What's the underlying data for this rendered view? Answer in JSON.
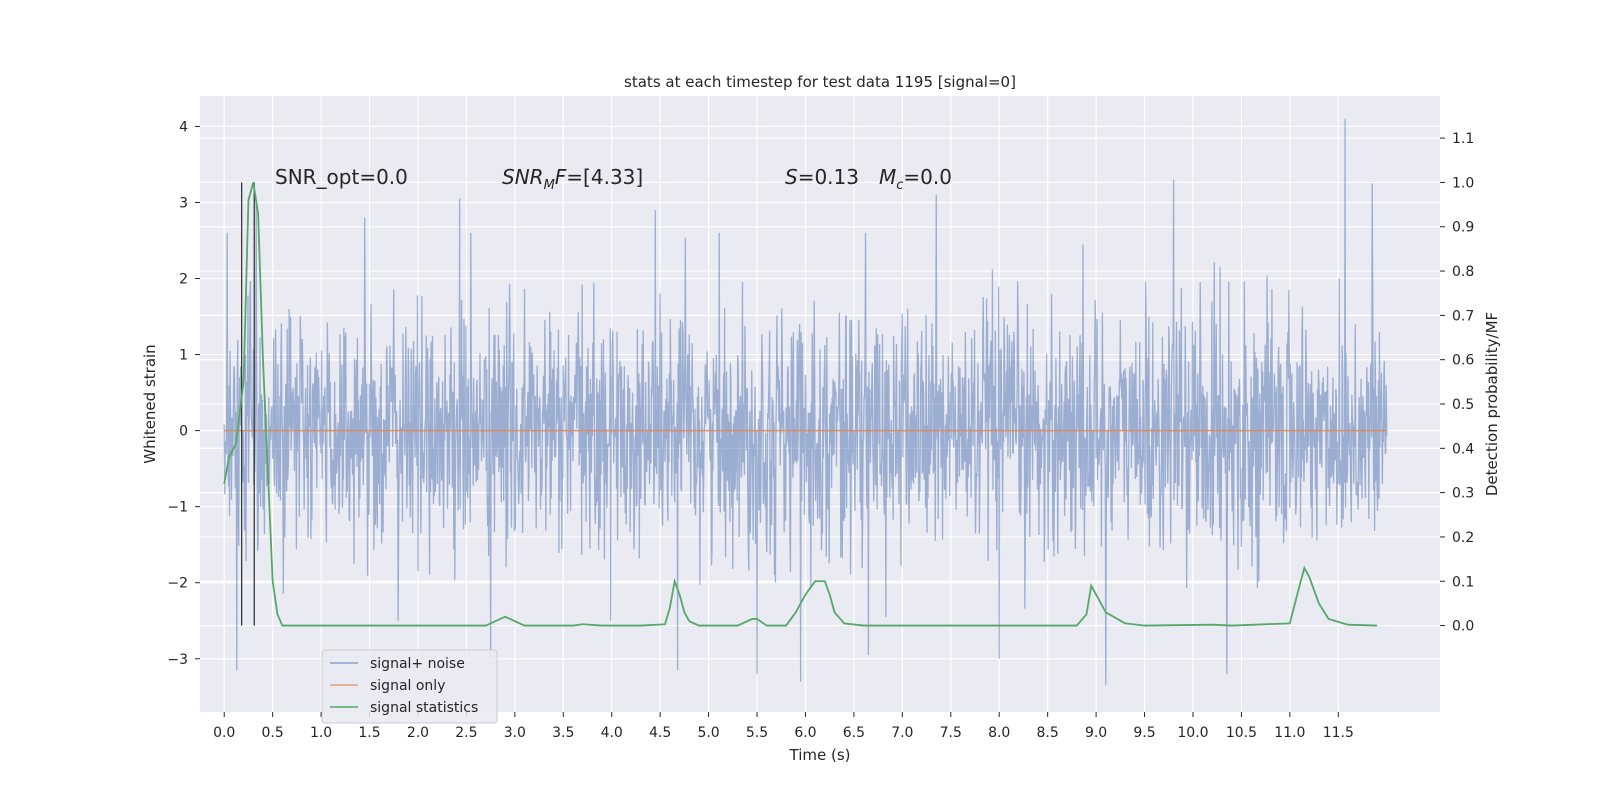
{
  "chart_data": {
    "type": "line",
    "title": "stats at each timestep for test data 1195 [signal=0]",
    "xlabel": "Time (s)",
    "ylabel": "Whitened strain",
    "y2label": "Detection probability/MF",
    "xlim": [
      -0.25,
      12.55
    ],
    "ylim": [
      -3.7,
      4.4
    ],
    "y2lim": [
      -0.195,
      1.195
    ],
    "x_ticks": [
      0.0,
      0.5,
      1.0,
      1.5,
      2.0,
      2.5,
      3.0,
      3.5,
      4.0,
      4.5,
      5.0,
      5.5,
      6.0,
      6.5,
      7.0,
      7.5,
      8.0,
      8.5,
      9.0,
      9.5,
      10.0,
      10.5,
      11.0,
      11.5
    ],
    "x_tick_labels": [
      "0.0",
      "0.5",
      "1.0",
      "1.5",
      "2.0",
      "2.5",
      "3.0",
      "3.5",
      "4.0",
      "4.5",
      "5.0",
      "5.5",
      "6.0",
      "6.5",
      "7.0",
      "7.5",
      "8.0",
      "8.5",
      "9.0",
      "9.5",
      "10.0",
      "10.5",
      "11.0",
      "11.5"
    ],
    "y_ticks": [
      -3,
      -2,
      -1,
      0,
      1,
      2,
      3,
      4
    ],
    "y_tick_labels": [
      "−3",
      "−2",
      "−1",
      "0",
      "1",
      "2",
      "3",
      "4"
    ],
    "y2_ticks": [
      0.0,
      0.1,
      0.2,
      0.3,
      0.4,
      0.5,
      0.6,
      0.7,
      0.8,
      0.9,
      1.0,
      1.1
    ],
    "y2_tick_labels": [
      "0.0",
      "0.1",
      "0.2",
      "0.3",
      "0.4",
      "0.5",
      "0.6",
      "0.7",
      "0.8",
      "0.9",
      "1.0",
      "1.1"
    ],
    "grid": true,
    "legend_position": "lower-left",
    "annotations": {
      "snr_opt": "SNR_opt=0.0",
      "snr_mf_main": "SNR",
      "snr_mf_sub": "M",
      "snr_mf_rest": "F",
      "snr_mf_value": "=[4.33]",
      "s_symbol": "S",
      "s_value": "=0.13",
      "mc_symbol": "M",
      "mc_sub": "c",
      "mc_value": "=0.0"
    },
    "vertical_markers": [
      0.18,
      0.31
    ],
    "series": [
      {
        "name": "signal+ noise",
        "color": "#4c72b0",
        "opacity": 0.5,
        "x_range": [
          0.0,
          12.0
        ],
        "style": "dense noise around 0 with peaks up to about 4.1 and down to about -3.4",
        "peaks": [
          {
            "x": 0.03,
            "y": 2.6
          },
          {
            "x": 0.13,
            "y": -3.15
          },
          {
            "x": 0.33,
            "y": 3.0
          },
          {
            "x": 1.45,
            "y": 2.8
          },
          {
            "x": 2.43,
            "y": 3.05
          },
          {
            "x": 2.75,
            "y": -3.0
          },
          {
            "x": 4.45,
            "y": 2.9
          },
          {
            "x": 4.68,
            "y": -3.15
          },
          {
            "x": 5.5,
            "y": -3.2
          },
          {
            "x": 5.95,
            "y": -3.3
          },
          {
            "x": 6.65,
            "y": -2.95
          },
          {
            "x": 7.35,
            "y": 3.1
          },
          {
            "x": 8.0,
            "y": -3.0
          },
          {
            "x": 9.1,
            "y": -3.35
          },
          {
            "x": 9.8,
            "y": 3.3
          },
          {
            "x": 10.35,
            "y": -3.2
          },
          {
            "x": 11.57,
            "y": 4.1
          },
          {
            "x": 11.85,
            "y": 3.25
          }
        ]
      },
      {
        "name": "signal only",
        "color": "#dd8452",
        "x": [
          0.0,
          12.0
        ],
        "y": [
          0.0,
          0.0
        ]
      },
      {
        "name": "signal statistics",
        "color": "#55a868",
        "axis": "right",
        "x": [
          0.0,
          0.05,
          0.12,
          0.2,
          0.25,
          0.3,
          0.35,
          0.4,
          0.45,
          0.5,
          0.55,
          0.6,
          0.7,
          1.0,
          2.5,
          2.7,
          2.8,
          2.9,
          3.0,
          3.1,
          3.3,
          3.6,
          3.7,
          3.9,
          4.3,
          4.55,
          4.6,
          4.65,
          4.7,
          4.75,
          4.8,
          4.9,
          5.0,
          5.3,
          5.45,
          5.5,
          5.6,
          5.8,
          5.9,
          6.0,
          6.1,
          6.2,
          6.25,
          6.3,
          6.4,
          6.6,
          8.8,
          8.9,
          8.95,
          9.0,
          9.1,
          9.3,
          9.5,
          10.2,
          10.4,
          11.0,
          11.1,
          11.15,
          11.2,
          11.3,
          11.4,
          11.6,
          11.9
        ],
        "y": [
          0.32,
          0.38,
          0.41,
          0.55,
          0.96,
          1.0,
          0.93,
          0.6,
          0.35,
          0.1,
          0.025,
          0.0,
          0.0,
          0.0,
          0.0,
          0.0,
          0.01,
          0.02,
          0.01,
          0.0,
          0.0,
          0.0,
          0.003,
          0.0,
          0.0,
          0.003,
          0.04,
          0.1,
          0.07,
          0.03,
          0.01,
          0.0,
          0.0,
          0.0,
          0.015,
          0.015,
          0.0,
          0.0,
          0.03,
          0.07,
          0.1,
          0.1,
          0.07,
          0.03,
          0.005,
          0.0,
          0.0,
          0.025,
          0.09,
          0.07,
          0.03,
          0.005,
          0.0,
          0.002,
          0.0,
          0.005,
          0.09,
          0.13,
          0.11,
          0.05,
          0.015,
          0.002,
          0.0
        ]
      }
    ]
  }
}
